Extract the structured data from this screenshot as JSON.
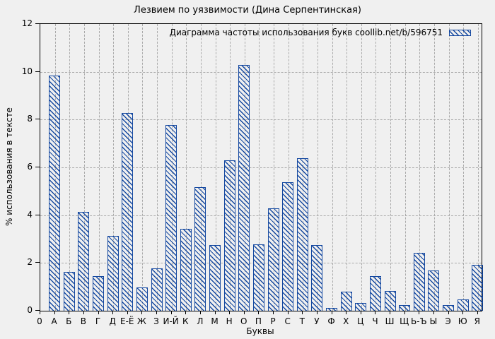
{
  "title": "Лезвием по уязвимости (Дина Серпентинская)",
  "legend": {
    "label": "Диаграмма частоты использования букв coollib.net/b/596751"
  },
  "axes": {
    "x_label": "Буквы",
    "y_label": "% использования в тексте",
    "x_origin_tick": "0",
    "y_ticks": [
      0,
      2,
      4,
      6,
      8,
      10,
      12
    ],
    "y_max": 12
  },
  "colors": {
    "bar": "#1448a0",
    "background": "#f0f0f0",
    "grid": "#aaaaaa",
    "axis": "#000000"
  },
  "chart_data": {
    "type": "bar",
    "title": "Лезвием по уязвимости (Дина Серпентинская)",
    "legend_label": "Диаграмма частоты использования букв coollib.net/b/596751",
    "categories": [
      "А",
      "Б",
      "В",
      "Г",
      "Д",
      "Е-Ё",
      "Ж",
      "З",
      "И-Й",
      "К",
      "Л",
      "М",
      "Н",
      "О",
      "П",
      "Р",
      "С",
      "Т",
      "У",
      "Ф",
      "Х",
      "Ц",
      "Ч",
      "Ш",
      "Щ",
      "Ь-Ъ",
      "Ы",
      "Э",
      "Ю",
      "Я"
    ],
    "values": [
      9.85,
      1.65,
      4.15,
      1.45,
      3.15,
      8.3,
      1.0,
      1.8,
      7.8,
      3.45,
      5.2,
      2.75,
      6.3,
      10.3,
      2.8,
      4.3,
      5.4,
      6.4,
      2.75,
      0.12,
      0.8,
      0.35,
      1.45,
      0.85,
      0.25,
      2.45,
      1.7,
      0.25,
      0.5,
      1.95
    ],
    "xlabel": "Буквы",
    "ylabel": "% использования в тексте",
    "ylim": [
      0,
      12
    ],
    "grid": true,
    "grid_style": "dashed",
    "legend_position": "top-right-inside",
    "bar_style": "diagonal-hatch",
    "y_gridlines": [
      2,
      4,
      6,
      8,
      10
    ]
  }
}
